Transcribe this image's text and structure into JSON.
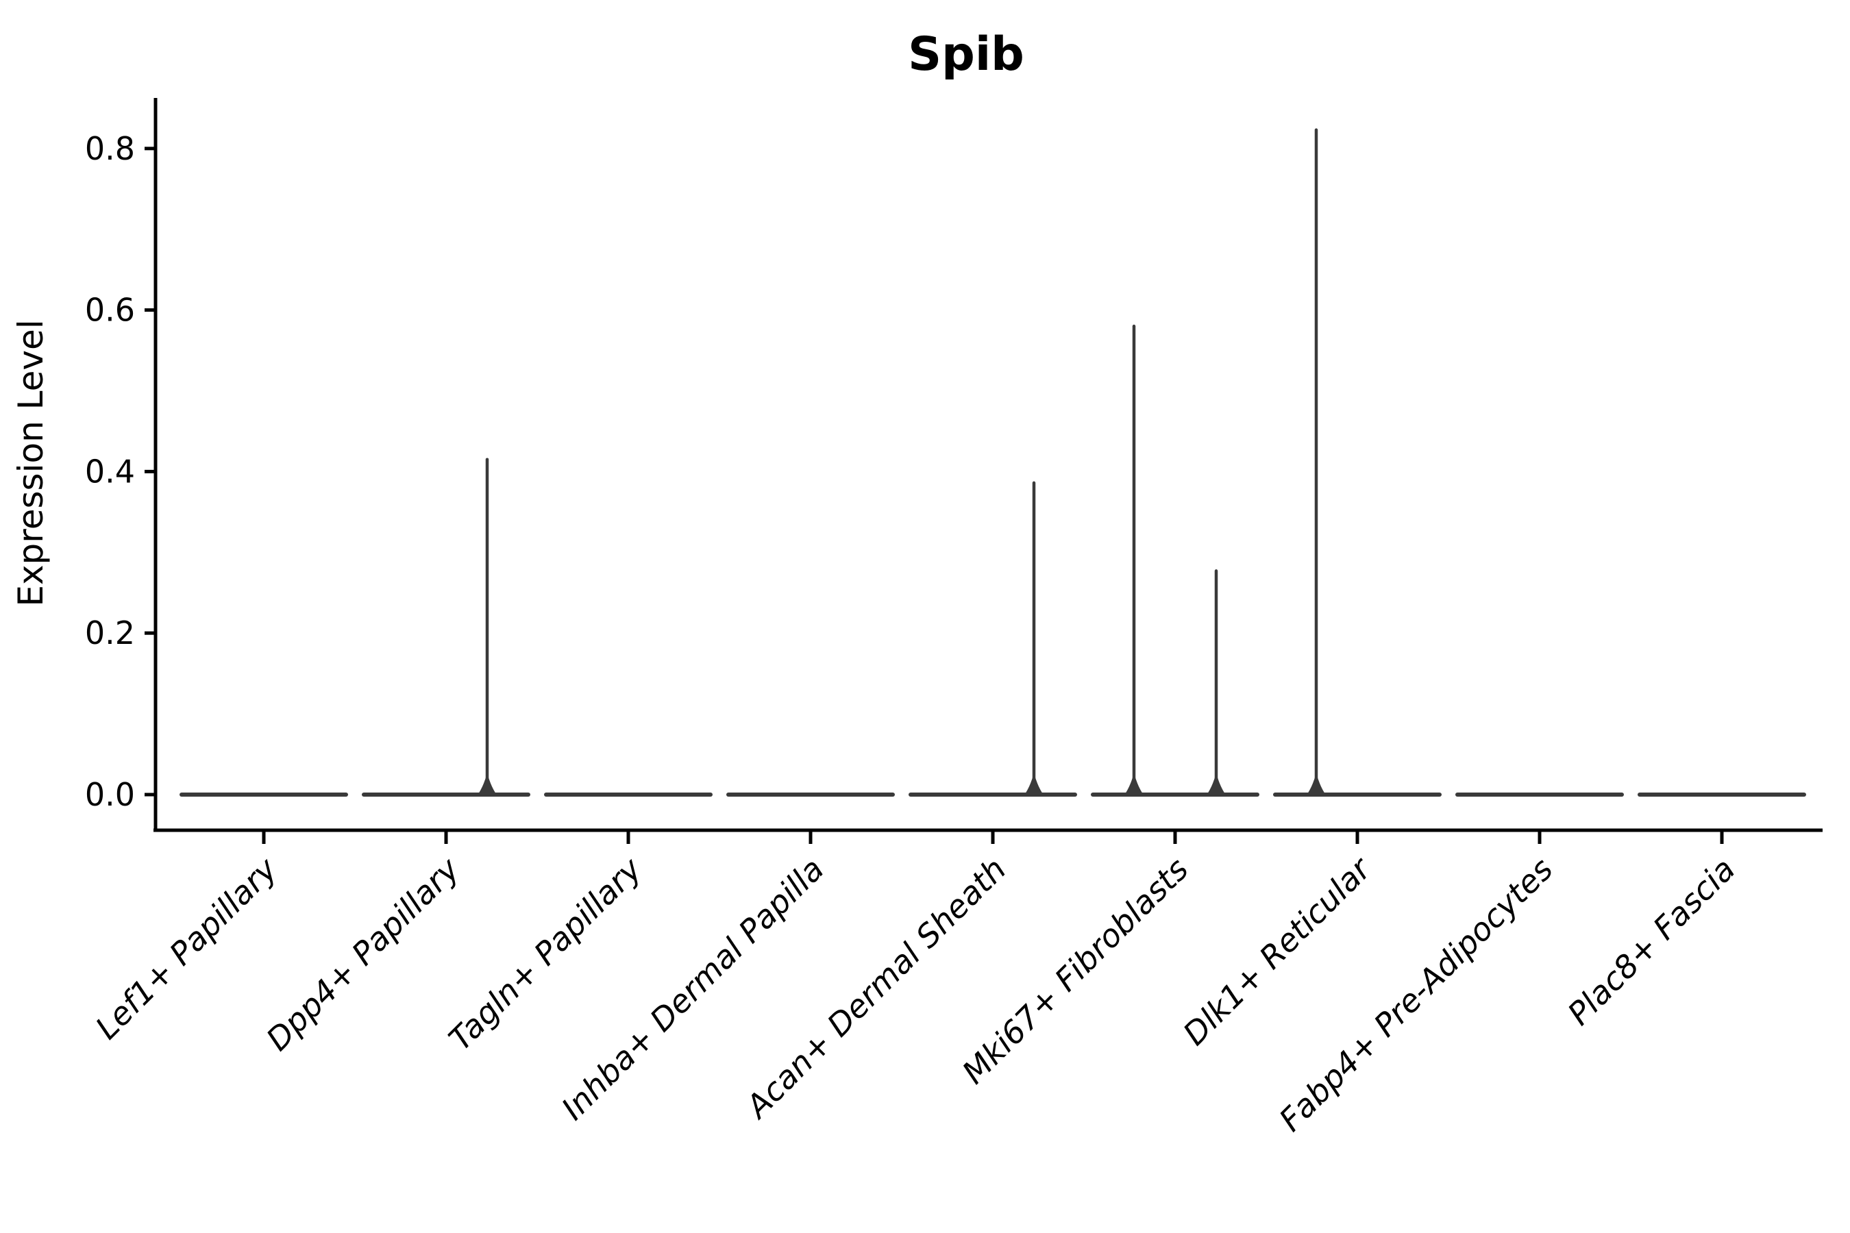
{
  "figure": {
    "title": "Spib",
    "background_color": "#ffffff",
    "axis_color": "#000000",
    "violin_color": "#3a3a3a"
  },
  "chart_data": {
    "type": "violin",
    "title": "Spib",
    "xlabel": "",
    "ylabel": "Expression Level",
    "ylim": [
      0,
      0.86
    ],
    "yticks": [
      "0.0",
      "0.2",
      "0.4",
      "0.6",
      "0.8"
    ],
    "ytick_values": [
      0.0,
      0.2,
      0.4,
      0.6,
      0.8
    ],
    "grid": false,
    "legend": null,
    "categories": [
      "Lef1+ Papillary",
      "Dpp4+ Papillary",
      "Tagln+ Papillary",
      "Inhba+ Dermal Papilla",
      "Acan+ Dermal Sheath",
      "Mki67+ Fibroblasts",
      "Dlk1+ Reticular",
      "Fabp4+ Pre-Adipocytes",
      "Plac8+ Fascia"
    ],
    "category_max_expression": [
      0.0,
      0.41,
      0.0,
      0.0,
      0.39,
      0.58,
      0.82,
      0.0,
      0.0
    ],
    "spikes": [
      {
        "category": "Dpp4+ Papillary",
        "side": "right",
        "value": 0.415
      },
      {
        "category": "Acan+ Dermal Sheath",
        "side": "right",
        "value": 0.386
      },
      {
        "category": "Mki67+ Fibroblasts",
        "side": "left",
        "value": 0.58
      },
      {
        "category": "Mki67+ Fibroblasts",
        "side": "right",
        "value": 0.277
      },
      {
        "category": "Dlk1+ Reticular",
        "side": "left",
        "value": 0.823
      }
    ]
  }
}
